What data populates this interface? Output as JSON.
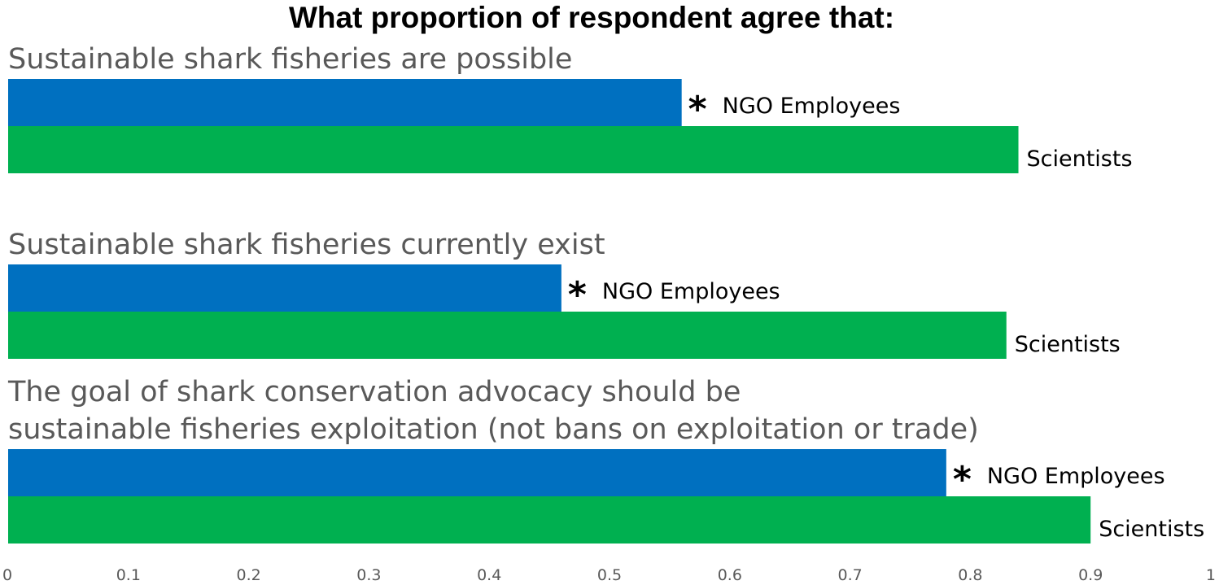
{
  "chart_data": {
    "type": "bar",
    "orientation": "horizontal",
    "title": "What proportion of respondent agree that:",
    "categories": [
      "Sustainable shark fisheries are possible",
      "Sustainable shark fisheries currently exist",
      "The goal of shark conservation advocacy should be sustainable fisheries exploitation (not bans on exploitation or trade)"
    ],
    "category_lines": [
      [
        "Sustainable shark fisheries are possible"
      ],
      [
        "Sustainable shark fisheries currently exist"
      ],
      [
        "The goal of shark conservation advocacy should be",
        "sustainable fisheries exploitation (not bans on exploitation or trade)"
      ]
    ],
    "series": [
      {
        "name": "NGO Employees",
        "values": [
          0.56,
          0.46,
          0.78
        ],
        "color": "#0070C0",
        "significance_marker": "*"
      },
      {
        "name": "Scientists",
        "values": [
          0.84,
          0.83,
          0.9
        ],
        "color": "#00B050"
      }
    ],
    "xlim": [
      0,
      1
    ],
    "xticks": [
      "0",
      "0.1",
      "0.2",
      "0.3",
      "0.4",
      "0.5",
      "0.6",
      "0.7",
      "0.8",
      "0.9",
      "1"
    ],
    "xlabel": "",
    "ylabel": "",
    "grid": false,
    "legend": "none (series labelled at bar ends)"
  }
}
